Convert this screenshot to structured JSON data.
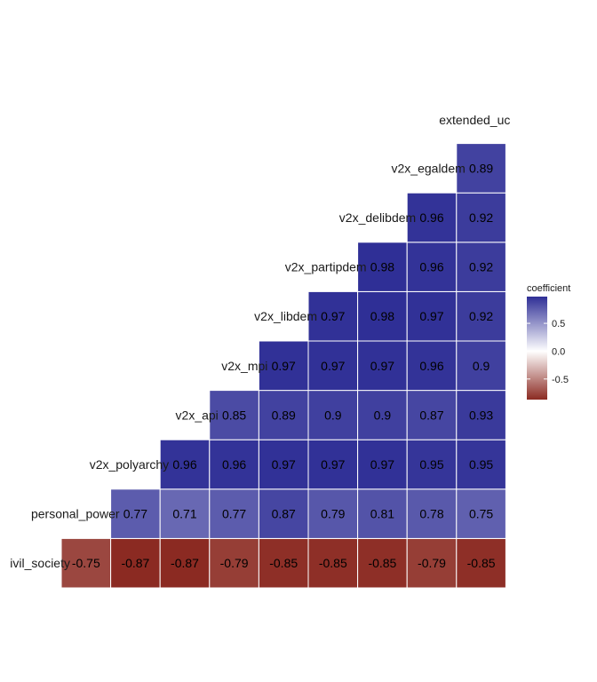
{
  "chart_data": {
    "type": "heatmap",
    "variables": [
      "civil_society",
      "personal_power",
      "v2x_polyarchy",
      "v2x_api",
      "v2x_mpi",
      "v2x_libdem",
      "v2x_partipdem",
      "v2x_delibdem",
      "v2x_egaldem",
      "extended_uds"
    ],
    "visible_labels": [
      "ivil_society",
      "personal_power",
      "v2x_polyarchy",
      "v2x_api",
      "v2x_mpi",
      "v2x_libdem",
      "v2x_partipdem",
      "v2x_delibdem",
      "v2x_egaldem",
      "extended_uc"
    ],
    "cells": [
      {
        "row": "civil_society",
        "col": "personal_power",
        "value": -0.75
      },
      {
        "row": "civil_society",
        "col": "v2x_polyarchy",
        "value": -0.87
      },
      {
        "row": "civil_society",
        "col": "v2x_api",
        "value": -0.87
      },
      {
        "row": "civil_society",
        "col": "v2x_mpi",
        "value": -0.79
      },
      {
        "row": "civil_society",
        "col": "v2x_libdem",
        "value": -0.85
      },
      {
        "row": "civil_society",
        "col": "v2x_partipdem",
        "value": -0.85
      },
      {
        "row": "civil_society",
        "col": "v2x_delibdem",
        "value": -0.85
      },
      {
        "row": "civil_society",
        "col": "v2x_egaldem",
        "value": -0.79
      },
      {
        "row": "civil_society",
        "col": "extended_uds",
        "value": -0.85
      },
      {
        "row": "personal_power",
        "col": "v2x_polyarchy",
        "value": 0.77
      },
      {
        "row": "personal_power",
        "col": "v2x_api",
        "value": 0.71
      },
      {
        "row": "personal_power",
        "col": "v2x_mpi",
        "value": 0.77
      },
      {
        "row": "personal_power",
        "col": "v2x_libdem",
        "value": 0.87
      },
      {
        "row": "personal_power",
        "col": "v2x_partipdem",
        "value": 0.79
      },
      {
        "row": "personal_power",
        "col": "v2x_delibdem",
        "value": 0.81
      },
      {
        "row": "personal_power",
        "col": "v2x_egaldem",
        "value": 0.78
      },
      {
        "row": "personal_power",
        "col": "extended_uds",
        "value": 0.75
      },
      {
        "row": "v2x_polyarchy",
        "col": "v2x_api",
        "value": 0.96
      },
      {
        "row": "v2x_polyarchy",
        "col": "v2x_mpi",
        "value": 0.96
      },
      {
        "row": "v2x_polyarchy",
        "col": "v2x_libdem",
        "value": 0.97
      },
      {
        "row": "v2x_polyarchy",
        "col": "v2x_partipdem",
        "value": 0.97
      },
      {
        "row": "v2x_polyarchy",
        "col": "v2x_delibdem",
        "value": 0.97
      },
      {
        "row": "v2x_polyarchy",
        "col": "v2x_egaldem",
        "value": 0.95
      },
      {
        "row": "v2x_polyarchy",
        "col": "extended_uds",
        "value": 0.95
      },
      {
        "row": "v2x_api",
        "col": "v2x_mpi",
        "value": 0.85
      },
      {
        "row": "v2x_api",
        "col": "v2x_libdem",
        "value": 0.89
      },
      {
        "row": "v2x_api",
        "col": "v2x_partipdem",
        "value": 0.9
      },
      {
        "row": "v2x_api",
        "col": "v2x_delibdem",
        "value": 0.9
      },
      {
        "row": "v2x_api",
        "col": "v2x_egaldem",
        "value": 0.87
      },
      {
        "row": "v2x_api",
        "col": "extended_uds",
        "value": 0.93
      },
      {
        "row": "v2x_mpi",
        "col": "v2x_libdem",
        "value": 0.97
      },
      {
        "row": "v2x_mpi",
        "col": "v2x_partipdem",
        "value": 0.97
      },
      {
        "row": "v2x_mpi",
        "col": "v2x_delibdem",
        "value": 0.97
      },
      {
        "row": "v2x_mpi",
        "col": "v2x_egaldem",
        "value": 0.96
      },
      {
        "row": "v2x_mpi",
        "col": "extended_uds",
        "value": 0.9
      },
      {
        "row": "v2x_libdem",
        "col": "v2x_partipdem",
        "value": 0.97
      },
      {
        "row": "v2x_libdem",
        "col": "v2x_delibdem",
        "value": 0.98
      },
      {
        "row": "v2x_libdem",
        "col": "v2x_egaldem",
        "value": 0.97
      },
      {
        "row": "v2x_libdem",
        "col": "extended_uds",
        "value": 0.92
      },
      {
        "row": "v2x_partipdem",
        "col": "v2x_delibdem",
        "value": 0.98
      },
      {
        "row": "v2x_partipdem",
        "col": "v2x_egaldem",
        "value": 0.96
      },
      {
        "row": "v2x_partipdem",
        "col": "extended_uds",
        "value": 0.92
      },
      {
        "row": "v2x_delibdem",
        "col": "v2x_egaldem",
        "value": 0.96
      },
      {
        "row": "v2x_delibdem",
        "col": "extended_uds",
        "value": 0.92
      },
      {
        "row": "v2x_egaldem",
        "col": "extended_uds",
        "value": 0.89
      }
    ],
    "legend": {
      "title": "coefficient",
      "ticks": [
        0.5,
        0.0,
        -0.5
      ],
      "tick_labels": [
        "0.5",
        "0.0",
        "-0.5"
      ],
      "range": [
        -0.87,
        0.98
      ],
      "placement": "right"
    },
    "colors": {
      "low": "#8b2a22",
      "mid": "#ffffff",
      "high": "#2f2f96"
    },
    "grid": false
  }
}
